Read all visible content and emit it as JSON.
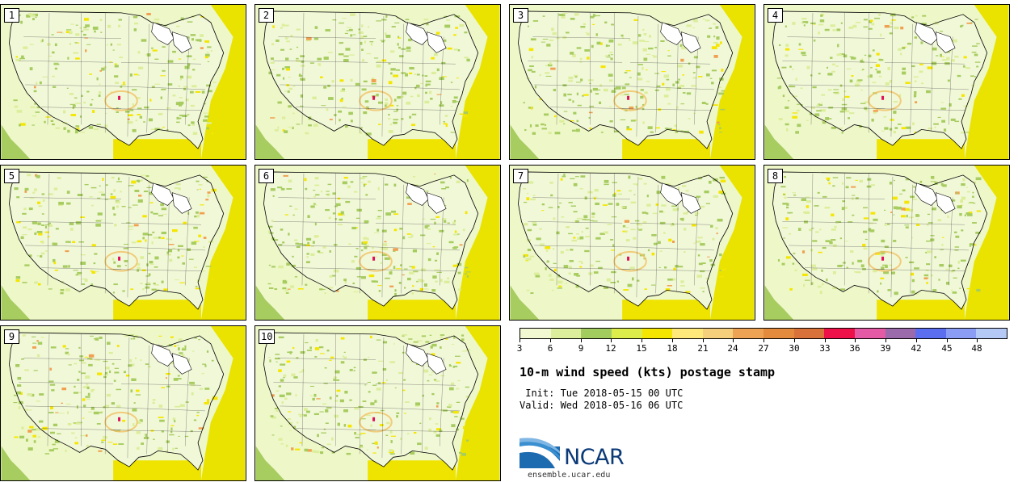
{
  "stamps": [
    {
      "label": "1"
    },
    {
      "label": "2"
    },
    {
      "label": "3"
    },
    {
      "label": "4"
    },
    {
      "label": "5"
    },
    {
      "label": "6"
    },
    {
      "label": "7"
    },
    {
      "label": "8"
    },
    {
      "label": "9"
    },
    {
      "label": "10"
    }
  ],
  "colorbar": {
    "ticks": [
      "3",
      "6",
      "9",
      "12",
      "15",
      "18",
      "21",
      "24",
      "27",
      "30",
      "33",
      "36",
      "39",
      "42",
      "45",
      "48"
    ],
    "colors": [
      "#f1f8d2",
      "#dcee9c",
      "#a3cc5e",
      "#dcec4a",
      "#f4e600",
      "#ffe97a",
      "#f5cf7c",
      "#eea253",
      "#e48a3c",
      "#d9713b",
      "#ee1048",
      "#e55aa4",
      "#9b6aab",
      "#5b6ef0",
      "#8a9cf4",
      "#b5c9f7"
    ]
  },
  "title": "10-m wind speed (kts) postage stamp",
  "init_line": " Init: Tue 2018-05-15 00 UTC",
  "valid_line": "Valid: Wed 2018-05-16 06 UTC",
  "logo": {
    "text": "NCAR",
    "brand_color": "#0b3a78",
    "swoosh_color": "#2a7fc1"
  },
  "url": "ensemble.ucar.edu"
}
